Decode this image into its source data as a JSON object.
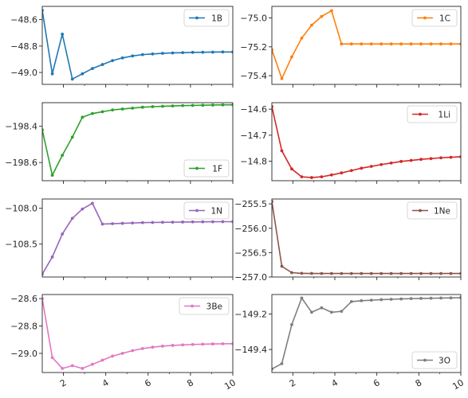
{
  "chart_data": [
    {
      "type": "line",
      "name": "1B",
      "color": "#1f77b4",
      "legend_loc": "upper-right",
      "x": [
        1.0,
        1.474,
        1.947,
        2.421,
        2.895,
        3.368,
        3.842,
        4.316,
        4.789,
        5.263,
        5.737,
        6.211,
        6.684,
        7.158,
        7.632,
        8.105,
        8.579,
        9.053,
        9.526,
        10.0
      ],
      "y": [
        -48.53,
        -49.01,
        -48.71,
        -49.05,
        -49.01,
        -48.97,
        -48.94,
        -48.91,
        -48.89,
        -48.875,
        -48.865,
        -48.86,
        -48.855,
        -48.852,
        -48.85,
        -48.848,
        -48.847,
        -48.846,
        -48.845,
        -48.845
      ],
      "ylim": [
        -49.09,
        -48.5
      ],
      "yticks": [
        -49.0,
        -48.8,
        -48.6
      ],
      "ytick_labels": [
        "−49.0",
        "−48.8",
        "−48.6"
      ]
    },
    {
      "type": "line",
      "name": "1C",
      "color": "#ff7f0e",
      "legend_loc": "upper-right",
      "x": [
        1.0,
        1.474,
        1.947,
        2.421,
        2.895,
        3.368,
        3.842,
        4.316,
        4.789,
        5.263,
        5.737,
        6.211,
        6.684,
        7.158,
        7.632,
        8.105,
        8.579,
        9.053,
        9.526,
        10.0
      ],
      "y": [
        -75.22,
        -75.42,
        -75.27,
        -75.14,
        -75.05,
        -74.99,
        -74.95,
        -75.18,
        -75.18,
        -75.18,
        -75.18,
        -75.18,
        -75.18,
        -75.18,
        -75.18,
        -75.18,
        -75.18,
        -75.18,
        -75.18,
        -75.18
      ],
      "ylim": [
        -75.46,
        -74.92
      ],
      "yticks": [
        -75.4,
        -75.2,
        -75.0
      ],
      "ytick_labels": [
        "−75.4",
        "−75.2",
        "−75.0"
      ]
    },
    {
      "type": "line",
      "name": "1F",
      "color": "#2ca02c",
      "legend_loc": "lower-right",
      "x": [
        1.0,
        1.474,
        1.947,
        2.421,
        2.895,
        3.368,
        3.842,
        4.316,
        4.789,
        5.263,
        5.737,
        6.211,
        6.684,
        7.158,
        7.632,
        8.105,
        8.579,
        9.053,
        9.526,
        10.0
      ],
      "y": [
        -198.42,
        -198.67,
        -198.56,
        -198.46,
        -198.35,
        -198.33,
        -198.32,
        -198.31,
        -198.305,
        -198.3,
        -198.295,
        -198.292,
        -198.29,
        -198.288,
        -198.286,
        -198.285,
        -198.284,
        -198.283,
        -198.282,
        -198.282
      ],
      "ylim": [
        -198.7,
        -198.27
      ],
      "yticks": [
        -198.6,
        -198.4
      ],
      "ytick_labels": [
        "−198.6",
        "−198.4"
      ]
    },
    {
      "type": "line",
      "name": "1Li",
      "color": "#d62728",
      "legend_loc": "upper-right",
      "x": [
        1.0,
        1.474,
        1.947,
        2.421,
        2.895,
        3.368,
        3.842,
        4.316,
        4.789,
        5.263,
        5.737,
        6.211,
        6.684,
        7.158,
        7.632,
        8.105,
        8.579,
        9.053,
        9.526,
        10.0
      ],
      "y": [
        -14.59,
        -14.76,
        -14.83,
        -14.86,
        -14.863,
        -14.86,
        -14.853,
        -14.845,
        -14.836,
        -14.827,
        -14.82,
        -14.813,
        -14.807,
        -14.801,
        -14.797,
        -14.793,
        -14.79,
        -14.787,
        -14.785,
        -14.783
      ],
      "ylim": [
        -14.875,
        -14.575
      ],
      "yticks": [
        -14.8,
        -14.7,
        -14.6
      ],
      "ytick_labels": [
        "−14.8",
        "−14.7",
        "−14.6"
      ]
    },
    {
      "type": "line",
      "name": "1N",
      "color": "#9467bd",
      "legend_loc": "upper-right",
      "x": [
        1.0,
        1.474,
        1.947,
        2.421,
        2.895,
        3.368,
        3.842,
        4.316,
        4.789,
        5.263,
        5.737,
        6.211,
        6.684,
        7.158,
        7.632,
        8.105,
        8.579,
        9.053,
        9.526,
        10.0
      ],
      "y": [
        -108.92,
        -108.68,
        -108.36,
        -108.14,
        -108.01,
        -107.93,
        -108.22,
        -108.215,
        -108.21,
        -108.205,
        -108.2,
        -108.198,
        -108.196,
        -108.194,
        -108.192,
        -108.19,
        -108.189,
        -108.188,
        -108.187,
        -108.187
      ],
      "ylim": [
        -108.96,
        -107.87
      ],
      "yticks": [
        -108.5,
        -108.0
      ],
      "ytick_labels": [
        "−108.5",
        "−108.0"
      ]
    },
    {
      "type": "line",
      "name": "1Ne",
      "color": "#8c564b",
      "legend_loc": "upper-right",
      "x": [
        1.0,
        1.474,
        1.947,
        2.421,
        2.895,
        3.368,
        3.842,
        4.316,
        4.789,
        5.263,
        5.737,
        6.211,
        6.684,
        7.158,
        7.632,
        8.105,
        8.579,
        9.053,
        9.526,
        10.0
      ],
      "y": [
        -255.45,
        -256.78,
        -256.91,
        -256.925,
        -256.927,
        -256.928,
        -256.928,
        -256.928,
        -256.928,
        -256.928,
        -256.928,
        -256.928,
        -256.928,
        -256.928,
        -256.928,
        -256.928,
        -256.928,
        -256.928,
        -256.928,
        -256.928
      ],
      "ylim": [
        -257.0,
        -255.4
      ],
      "yticks": [
        -257.0,
        -256.5,
        -256.0,
        -255.5
      ],
      "ytick_labels": [
        "−257.0",
        "−256.5",
        "−256.0",
        "−255.5"
      ]
    },
    {
      "type": "line",
      "name": "3Be",
      "color": "#e377c2",
      "legend_loc": "upper-right",
      "x": [
        1.0,
        1.474,
        1.947,
        2.421,
        2.895,
        3.368,
        3.842,
        4.316,
        4.789,
        5.263,
        5.737,
        6.211,
        6.684,
        7.158,
        7.632,
        8.105,
        8.579,
        9.053,
        9.526,
        10.0
      ],
      "y": [
        -28.6,
        -29.03,
        -29.11,
        -29.09,
        -29.11,
        -29.08,
        -29.05,
        -29.02,
        -29.0,
        -28.98,
        -28.965,
        -28.955,
        -28.947,
        -28.942,
        -28.938,
        -28.935,
        -28.933,
        -28.931,
        -28.93,
        -28.929
      ],
      "ylim": [
        -29.14,
        -28.57
      ],
      "yticks": [
        -29.0,
        -28.8,
        -28.6
      ],
      "ytick_labels": [
        "−29.0",
        "−28.8",
        "−28.6"
      ]
    },
    {
      "type": "line",
      "name": "3O",
      "color": "#7f7f7f",
      "legend_loc": "lower-right",
      "x": [
        1.0,
        1.474,
        1.947,
        2.421,
        2.895,
        3.368,
        3.842,
        4.316,
        4.789,
        5.263,
        5.737,
        6.211,
        6.684,
        7.158,
        7.632,
        8.105,
        8.579,
        9.053,
        9.526,
        10.0
      ],
      "y": [
        -149.51,
        -149.48,
        -149.26,
        -149.11,
        -149.19,
        -149.165,
        -149.19,
        -149.185,
        -149.13,
        -149.125,
        -149.122,
        -149.119,
        -149.117,
        -149.115,
        -149.113,
        -149.112,
        -149.111,
        -149.11,
        -149.109,
        -149.108
      ],
      "ylim": [
        -149.53,
        -149.09
      ],
      "yticks": [
        -149.4,
        -149.2
      ],
      "ytick_labels": [
        "−149.4",
        "−149.2"
      ]
    }
  ],
  "x_axis": {
    "xlim": [
      1,
      10
    ],
    "ticks": [
      2,
      4,
      6,
      8,
      10
    ],
    "tick_labels": [
      "2",
      "4",
      "6",
      "8",
      "10"
    ],
    "minor_ticks": [
      3,
      5,
      7,
      9
    ]
  },
  "style": {
    "axes_edge": "#262626",
    "tick_color": "#262626"
  }
}
